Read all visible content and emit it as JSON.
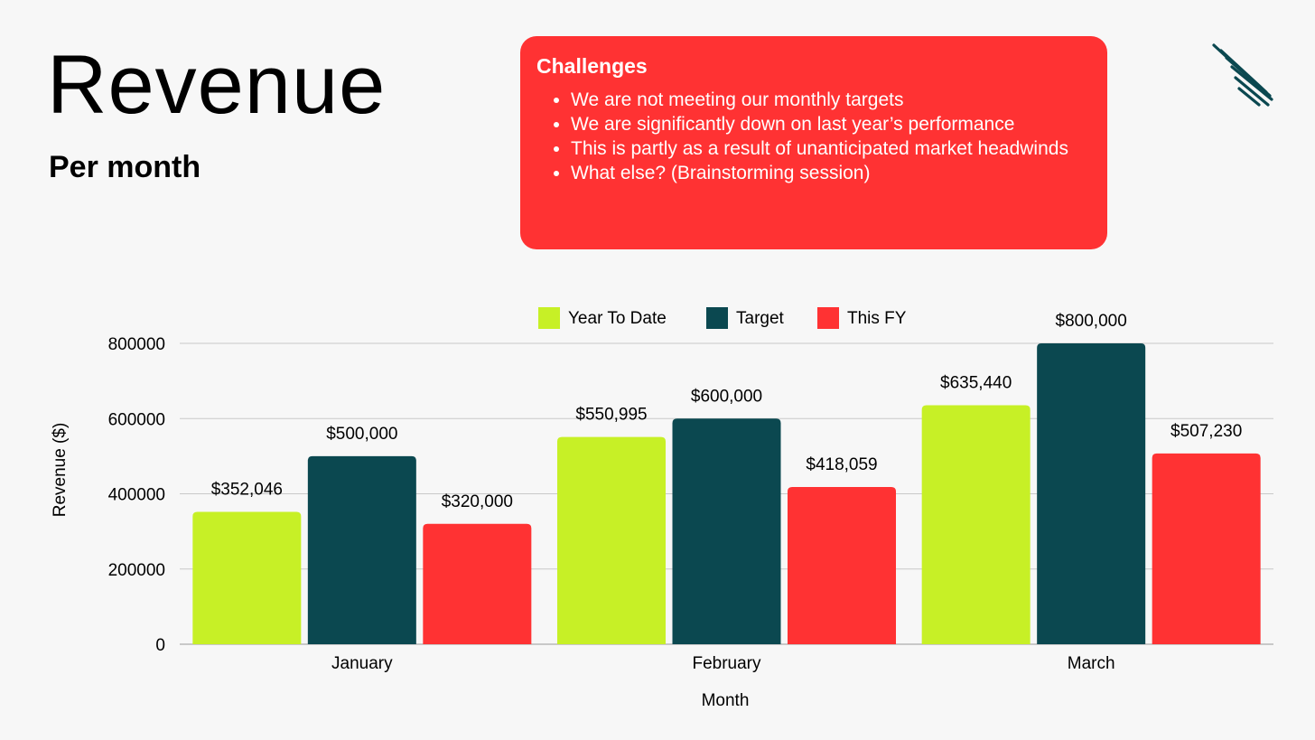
{
  "header": {
    "title": "Revenue",
    "subtitle": "Per month"
  },
  "challenges": {
    "heading": "Challenges",
    "items": [
      "We are not meeting our monthly targets",
      "We are significantly down on last year’s performance",
      "This is partly as a result of unanticipated market headwinds",
      "What else? (Brainstorming session)"
    ],
    "background": "#ff3233"
  },
  "logo": {
    "icon": "diagonal-stripes-logo-icon",
    "color": "#0b4850"
  },
  "chart_data": {
    "type": "bar",
    "categories": [
      "January",
      "February",
      "March"
    ],
    "series": [
      {
        "name": "Year To Date",
        "color": "#c7f026",
        "values": [
          352046,
          550995,
          635440
        ],
        "labels": [
          "$352,046",
          "$550,995",
          "$635,440"
        ]
      },
      {
        "name": "Target",
        "color": "#0b4850",
        "values": [
          500000,
          600000,
          800000
        ],
        "labels": [
          "$500,000",
          "$600,000",
          "$800,000"
        ]
      },
      {
        "name": "This FY",
        "color": "#ff3233",
        "values": [
          320000,
          418059,
          507230
        ],
        "labels": [
          "$320,000",
          "$418,059",
          "$507,230"
        ]
      }
    ],
    "xlabel": "Month",
    "ylabel": "Revenue ($)",
    "ylim": [
      0,
      800000
    ],
    "yticks": [
      "0",
      "200000",
      "400000",
      "600000",
      "800000"
    ],
    "grid": true,
    "legend": "top-center"
  }
}
